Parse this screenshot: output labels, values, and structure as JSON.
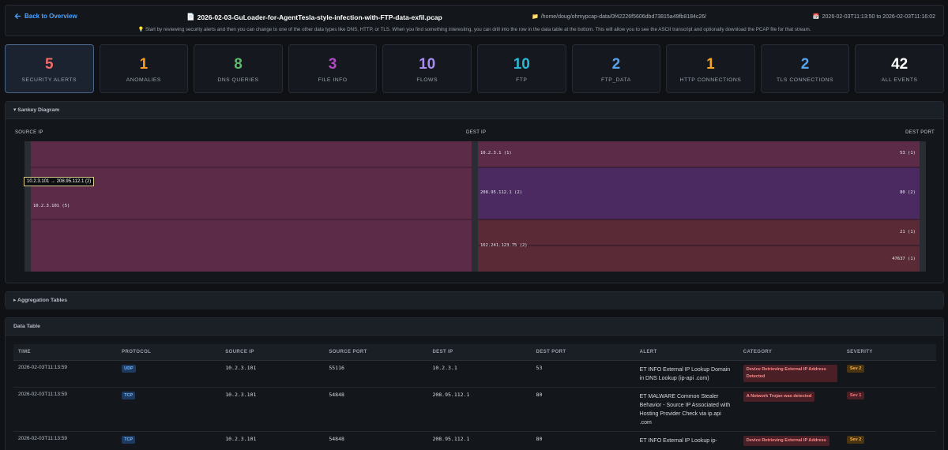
{
  "header": {
    "back_label": "Back to Overview",
    "filename": "2026-02-03-GuLoader-for-AgentTesla-style-infection-with-FTP-data-exfil.pcap",
    "path": "/home/doug/ohmypcap-data/0f42226f5606dbd73815a49fb8184c26/",
    "time_range": "2026-02-03T11:13:50 to 2026-02-03T11:16:02",
    "hint": "Start by reviewing security alerts and then you can change to one of the other data types like DNS, HTTP, or TLS. When you find something interesting, you can drill into the row in the data table at the bottom. This will allow you to see the ASCII transcript and optionally download the PCAP file for that stream."
  },
  "cards": [
    {
      "value": "5",
      "label": "SECURITY ALERTS",
      "color": "#f16a6a"
    },
    {
      "value": "1",
      "label": "ANOMALIES",
      "color": "#f59a2b"
    },
    {
      "value": "8",
      "label": "DNS QUERIES",
      "color": "#5bbd6a"
    },
    {
      "value": "3",
      "label": "FILE INFO",
      "color": "#b04ac2"
    },
    {
      "value": "10",
      "label": "FLOWS",
      "color": "#a88cf0"
    },
    {
      "value": "10",
      "label": "FTP",
      "color": "#2bb8d6"
    },
    {
      "value": "2",
      "label": "FTP_DATA",
      "color": "#58a2ea"
    },
    {
      "value": "1",
      "label": "HTTP CONNECTIONS",
      "color": "#f5a524"
    },
    {
      "value": "2",
      "label": "TLS CONNECTIONS",
      "color": "#58a2ea"
    },
    {
      "value": "42",
      "label": "ALL EVENTS",
      "color": "#ffffff"
    }
  ],
  "sankey": {
    "title": "▾ Sankey Diagram",
    "col_source": "SOURCE IP",
    "col_dest": "DEST IP",
    "col_port": "DEST PORT",
    "source_node": "10.2.3.101 (5)",
    "dest_nodes": [
      "10.2.3.1 (1)",
      "208.95.112.1 (2)",
      "162.241.123.75 (2)"
    ],
    "port_nodes": [
      "53 (1)",
      "80 (2)",
      "21 (1)",
      "47637 (1)"
    ],
    "tooltip": "10.2.3.101 → 208.95.112.1 (2)",
    "colors": {
      "source": "#5c2b47",
      "dest_dns": "#5c2b47",
      "dest_http": "#4a2a60",
      "dest_ftp": "#5a2b36"
    }
  },
  "aggregation": {
    "title": "▸ Aggregation Tables"
  },
  "data_table": {
    "title": "Data Table",
    "columns": [
      "TIME",
      "PROTOCOL",
      "SOURCE IP",
      "SOURCE PORT",
      "DEST IP",
      "DEST PORT",
      "ALERT",
      "CATEGORY",
      "SEVERITY"
    ],
    "rows": [
      {
        "time": "2026-02-03T11:13:59",
        "protocol": "UDP",
        "src_ip": "10.2.3.101",
        "src_port": "55116",
        "dst_ip": "10.2.3.1",
        "dst_port": "53",
        "alert": "ET INFO External IP Lookup Domain in DNS Lookup (ip-api .com)",
        "category": "Device Retrieving External IP Address Detected",
        "severity": "Sev 2"
      },
      {
        "time": "2026-02-03T11:13:59",
        "protocol": "TCP",
        "src_ip": "10.2.3.101",
        "src_port": "54848",
        "dst_ip": "208.95.112.1",
        "dst_port": "80",
        "alert": "ET MALWARE Common Stealer Behavior - Source IP Associated with Hosting Provider Check via ip.api .com",
        "category": "A Network Trojan was detected",
        "severity": "Sev 1"
      },
      {
        "time": "2026-02-03T11:13:59",
        "protocol": "TCP",
        "src_ip": "10.2.3.101",
        "src_port": "54848",
        "dst_ip": "208.95.112.1",
        "dst_port": "80",
        "alert": "ET INFO External IP Lookup ip-",
        "category": "Device Retrieving External IP Address",
        "severity": "Sev 2"
      }
    ]
  }
}
